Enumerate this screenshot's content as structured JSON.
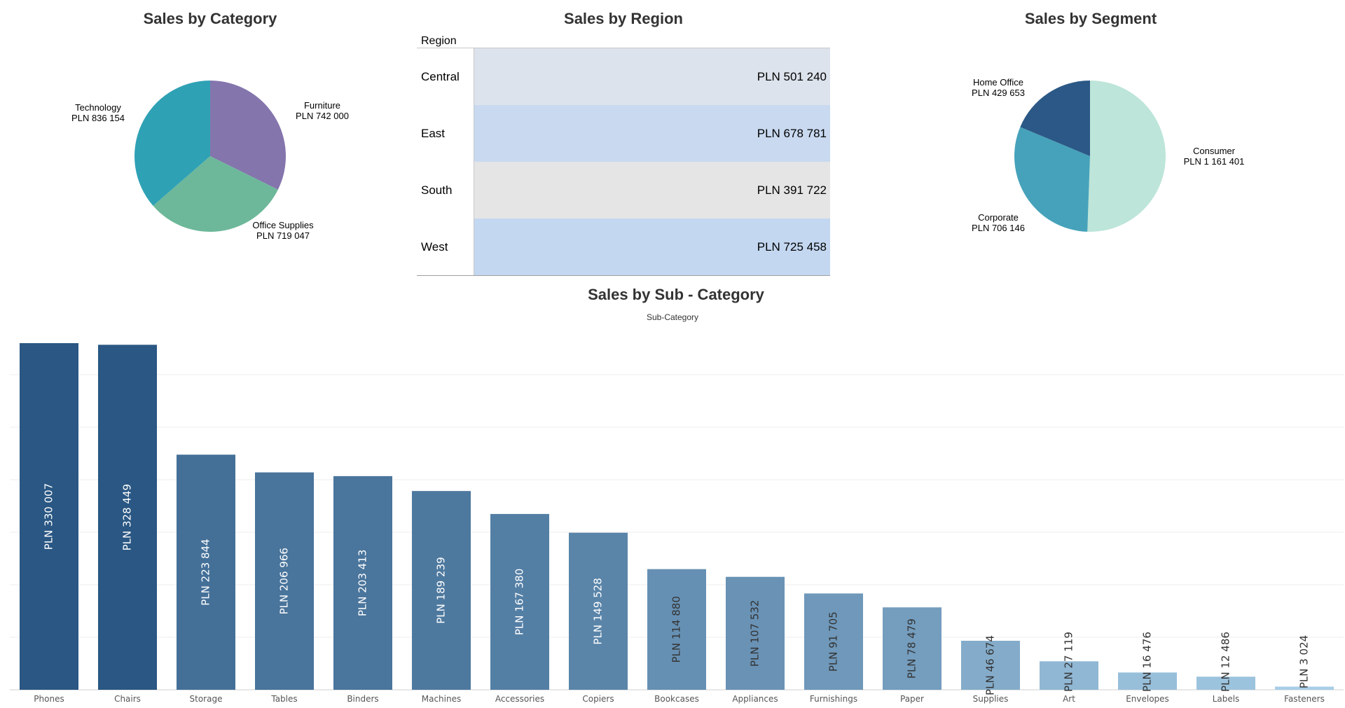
{
  "category_chart": {
    "title": "Sales by Category",
    "chart_data": {
      "type": "pie",
      "title": "Sales by Category",
      "slices": [
        {
          "label": "Furniture",
          "value_text": "PLN 742 000",
          "value": 742000,
          "color": "#8475ad"
        },
        {
          "label": "Office Supplies",
          "value_text": "PLN 719 047",
          "value": 719047,
          "color": "#6db89a"
        },
        {
          "label": "Technology",
          "value_text": "PLN 836 154",
          "value": 836154,
          "color": "#2fa1b5"
        }
      ]
    }
  },
  "region_table": {
    "title": "Sales by Region",
    "header": "Region",
    "rows": [
      {
        "region": "Central",
        "value": "PLN 501 240",
        "color": "#dde3ec"
      },
      {
        "region": "East",
        "value": "PLN 678 781",
        "color": "#c8d9f0"
      },
      {
        "region": "South",
        "value": "PLN 391 722",
        "color": "#e5e5e5"
      },
      {
        "region": "West",
        "value": "PLN 725 458",
        "color": "#c3d7f1"
      }
    ]
  },
  "segment_chart": {
    "title": "Sales by Segment",
    "chart_data": {
      "type": "pie",
      "title": "Sales by Segment",
      "slices": [
        {
          "label": "Consumer",
          "value_text": "PLN 1 161 401",
          "value": 1161401,
          "color": "#bde5d9"
        },
        {
          "label": "Corporate",
          "value_text": "PLN 706 146",
          "value": 706146,
          "color": "#46a2ba"
        },
        {
          "label": "Home Office",
          "value_text": "PLN 429 653",
          "value": 429653,
          "color": "#2b5886"
        }
      ]
    }
  },
  "subcategory_chart": {
    "title": "Sales by Sub - Category",
    "subtitle": "Sub-Category",
    "chart_data": {
      "type": "bar",
      "title": "Sales by Sub - Category",
      "xlabel": "Sub-Category",
      "categories": [
        "Phones",
        "Chairs",
        "Storage",
        "Tables",
        "Binders",
        "Machines",
        "Accessories",
        "Copiers",
        "Bookcases",
        "Appliances",
        "Furnishings",
        "Paper",
        "Supplies",
        "Art",
        "Envelopes",
        "Labels",
        "Fasteners"
      ],
      "values": [
        330007,
        328449,
        223844,
        206966,
        203413,
        189239,
        167380,
        149528,
        114880,
        107532,
        91705,
        78479,
        46674,
        27119,
        16476,
        12486,
        3024
      ],
      "value_labels": [
        "PLN 330 007",
        "PLN 328 449",
        "PLN 223 844",
        "PLN 206 966",
        "PLN 203 413",
        "PLN 189 239",
        "PLN 167 380",
        "PLN 149 528",
        "PLN 114 880",
        "PLN 107 532",
        "PLN 91 705",
        "PLN 78 479",
        "PLN 46 674",
        "PLN 27 119",
        "PLN 16 476",
        "PLN 12 486",
        "PLN 3 024"
      ],
      "ylim": [
        0,
        330007
      ],
      "grid": true,
      "color_low": "#b2d8ef",
      "color_high": "#2a5783"
    }
  }
}
